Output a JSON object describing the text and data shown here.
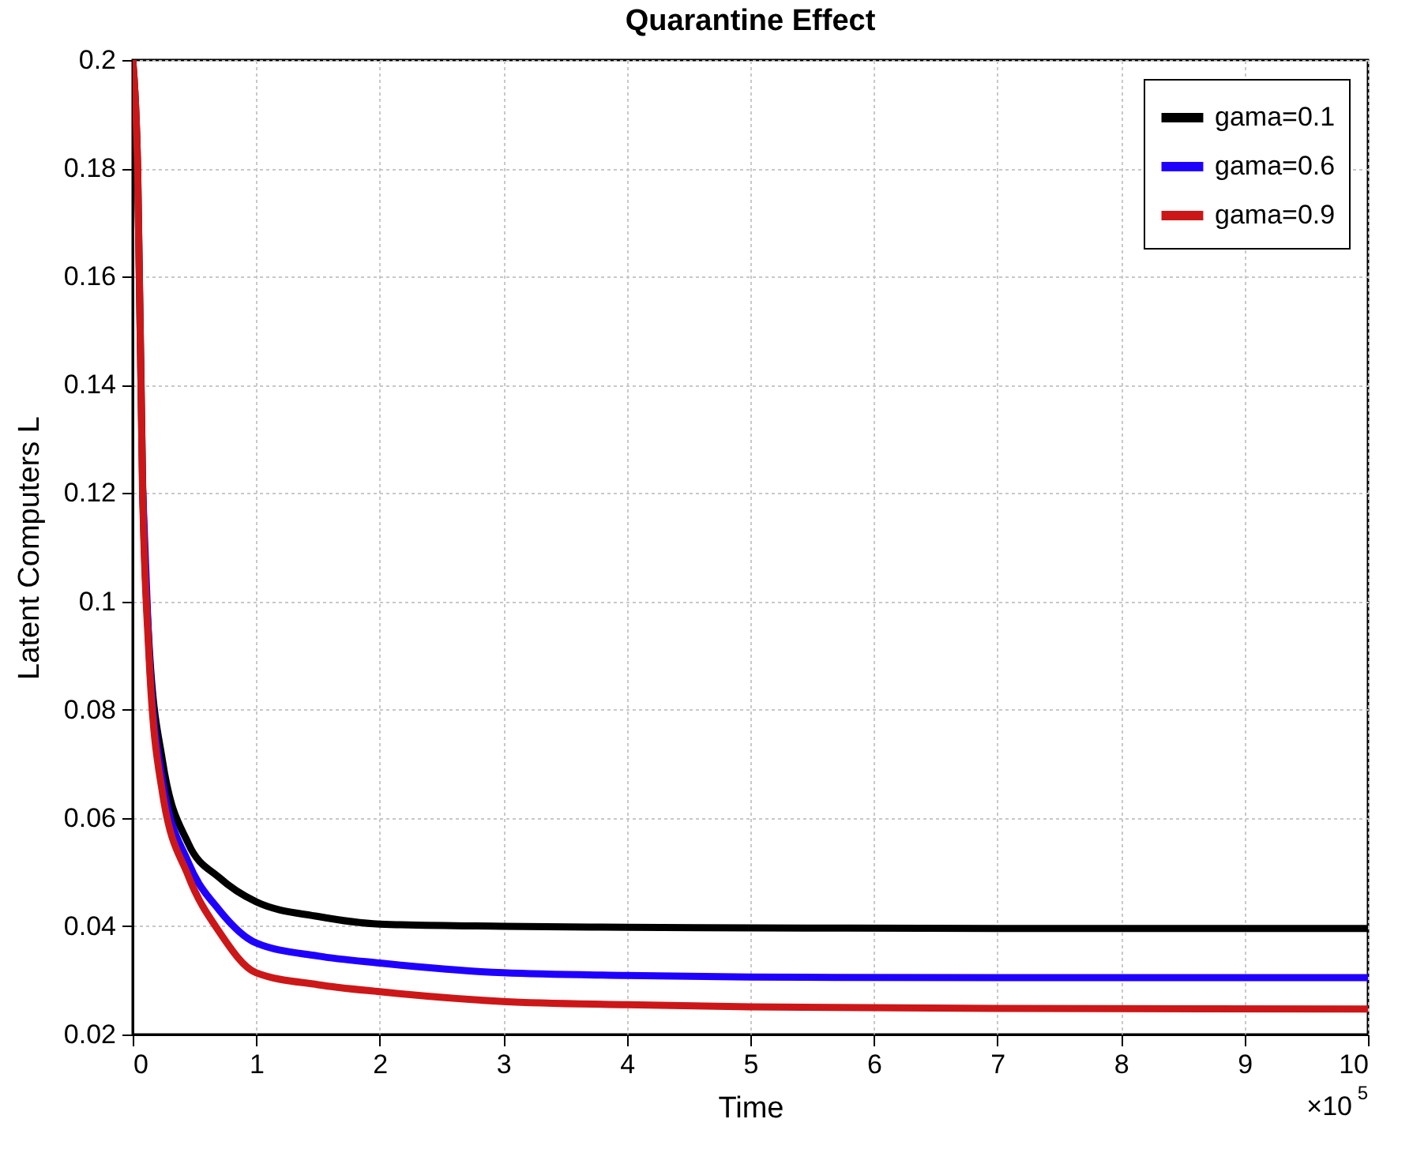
{
  "chart_data": {
    "type": "line",
    "title": "Quarantine Effect",
    "xlabel": "Time",
    "ylabel": "Latent Computers L",
    "annotations": [
      "×10$^{5}$"
    ],
    "x": [
      0,
      0.04,
      0.08,
      0.13,
      0.24,
      0.45,
      0.7,
      1,
      1.5,
      2,
      3,
      4,
      5,
      7,
      10
    ],
    "series": [
      {
        "name": "gama=0.1",
        "color": "#000000",
        "values": [
          0.2,
          0.18,
          0.122,
          0.093,
          0.0707,
          0.0553,
          0.049,
          0.0445,
          0.0418,
          0.0404,
          0.04,
          0.0398,
          0.0397,
          0.0396,
          0.0396
        ]
      },
      {
        "name": "gama=0.6",
        "color": "#1f00ff",
        "values": [
          null,
          null,
          0.121,
          0.092,
          0.067,
          0.0518,
          0.043,
          0.0369,
          0.0345,
          0.0332,
          0.0314,
          0.0309,
          0.0306,
          0.0305,
          0.0305
        ]
      },
      {
        "name": "gama=0.9",
        "color": "#cc1719",
        "values": [
          0.2,
          0.18,
          0.1207,
          0.0909,
          0.0648,
          0.0493,
          0.039,
          0.0314,
          0.0292,
          0.0279,
          0.0261,
          0.0255,
          0.0251,
          0.0248,
          0.0247
        ]
      }
    ],
    "xlim": [
      0,
      10
    ],
    "xticks": [
      0,
      1,
      2,
      3,
      4,
      5,
      6,
      7,
      8,
      9,
      10
    ],
    "ylim": [
      0.02,
      0.2
    ],
    "yticks": [
      0.02,
      0.04,
      0.06,
      0.08,
      0.1,
      0.12,
      0.14,
      0.16,
      0.18,
      0.2
    ],
    "grid": true,
    "legend": "top right",
    "line_style": "solid"
  }
}
